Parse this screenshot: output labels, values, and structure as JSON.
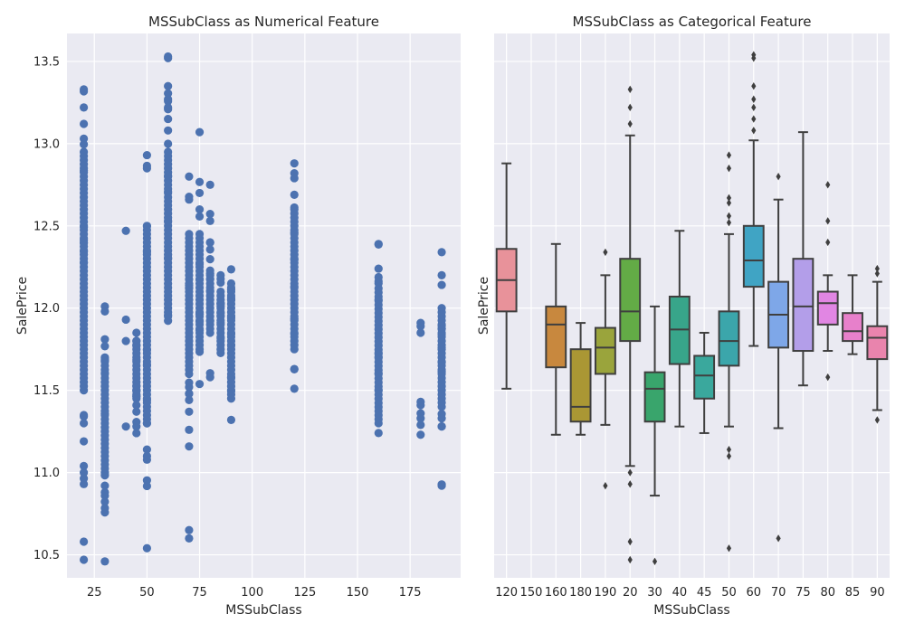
{
  "chart_data": [
    {
      "type": "scatter",
      "title": "MSSubClass as Numerical Feature",
      "xlabel": "MSSubClass",
      "ylabel": "SalePrice",
      "xlim": [
        12,
        199
      ],
      "ylim": [
        10.36,
        13.67
      ],
      "x_ticks": [
        25,
        50,
        75,
        100,
        125,
        150,
        175
      ],
      "y_ticks": [
        10.5,
        11.0,
        11.5,
        12.0,
        12.5,
        13.0,
        13.5
      ],
      "grid": true,
      "marker_color": "#4c72b0",
      "groups": [
        {
          "x": 20,
          "min": 10.47,
          "max": 13.33,
          "dense_range": [
            11.5,
            12.95
          ],
          "outliers": [
            10.47,
            10.58,
            10.93,
            11.0,
            11.04,
            11.19,
            11.3,
            11.35,
            13.03,
            13.12,
            13.22,
            13.33
          ]
        },
        {
          "x": 30,
          "min": 10.46,
          "max": 12.01,
          "dense_range": [
            11.0,
            11.7
          ],
          "outliers": [
            10.46,
            10.86,
            10.88,
            10.92,
            11.98,
            12.01
          ]
        },
        {
          "x": 40,
          "min": 11.28,
          "max": 12.47,
          "dense_range": null,
          "outliers": [
            11.28,
            11.8,
            11.93,
            12.47
          ]
        },
        {
          "x": 45,
          "min": 11.24,
          "max": 11.85,
          "dense_range": [
            11.45,
            11.8
          ],
          "outliers": [
            11.24,
            11.28,
            11.37,
            11.85
          ]
        },
        {
          "x": 50,
          "min": 10.54,
          "max": 12.93,
          "dense_range": [
            11.3,
            12.5
          ],
          "outliers": [
            10.54,
            11.1,
            11.14,
            12.85,
            12.93
          ]
        },
        {
          "x": 60,
          "min": 11.76,
          "max": 13.53,
          "dense_range": [
            11.95,
            12.95
          ],
          "outliers": [
            13.08,
            13.15,
            13.22,
            13.27,
            13.35,
            13.52,
            13.53
          ]
        },
        {
          "x": 70,
          "min": 10.6,
          "max": 12.8,
          "dense_range": [
            11.6,
            12.45
          ],
          "outliers": [
            10.6,
            11.26,
            11.37,
            12.66,
            12.8
          ]
        },
        {
          "x": 75,
          "min": 11.53,
          "max": 13.07,
          "dense_range": [
            11.75,
            12.45
          ],
          "outliers": [
            12.6,
            12.7,
            13.07
          ]
        },
        {
          "x": 80,
          "min": 11.58,
          "max": 12.75,
          "dense_range": [
            11.85,
            12.2
          ],
          "outliers": [
            11.58,
            12.4,
            12.53,
            12.75
          ]
        },
        {
          "x": 85,
          "min": 11.72,
          "max": 12.2,
          "dense_range": [
            11.75,
            12.1
          ],
          "outliers": [
            12.2
          ]
        },
        {
          "x": 90,
          "min": 11.32,
          "max": 12.24,
          "dense_range": [
            11.45,
            12.15
          ],
          "outliers": [
            11.32
          ]
        },
        {
          "x": 120,
          "min": 11.51,
          "max": 12.88,
          "dense_range": [
            11.75,
            12.6
          ],
          "outliers": [
            11.51,
            12.82,
            12.88
          ]
        },
        {
          "x": 160,
          "min": 11.23,
          "max": 12.39,
          "dense_range": [
            11.3,
            12.12
          ],
          "outliers": [
            12.24,
            12.39
          ]
        },
        {
          "x": 180,
          "min": 11.23,
          "max": 11.91,
          "dense_range": null,
          "outliers": [
            11.23,
            11.29,
            11.33,
            11.36,
            11.41,
            11.43,
            11.85,
            11.89,
            11.91
          ]
        },
        {
          "x": 190,
          "min": 10.92,
          "max": 12.34,
          "dense_range": [
            11.4,
            12.0
          ],
          "outliers": [
            10.92,
            11.28,
            11.33,
            12.2,
            12.34
          ]
        }
      ]
    },
    {
      "type": "box",
      "title": "MSSubClass as Categorical Feature",
      "xlabel": "MSSubClass",
      "ylabel": "SalePrice",
      "ylim": [
        10.36,
        13.67
      ],
      "grid": true,
      "categories": [
        "120",
        "150",
        "160",
        "180",
        "190",
        "20",
        "30",
        "40",
        "45",
        "50",
        "60",
        "70",
        "75",
        "80",
        "85",
        "90"
      ],
      "boxes": [
        {
          "category": "120",
          "color": "#e8929a",
          "whisker_low": 11.51,
          "q1": 11.98,
          "median": 12.17,
          "q3": 12.36,
          "whisker_high": 12.88,
          "fliers": []
        },
        {
          "category": "150",
          "color": null,
          "whisker_low": null,
          "q1": null,
          "median": null,
          "q3": null,
          "whisker_high": null,
          "fliers": []
        },
        {
          "category": "160",
          "color": "#c8883e",
          "whisker_low": 11.23,
          "q1": 11.64,
          "median": 11.9,
          "q3": 12.01,
          "whisker_high": 12.39,
          "fliers": []
        },
        {
          "category": "180",
          "color": "#aa9734",
          "whisker_low": 11.23,
          "q1": 11.31,
          "median": 11.4,
          "q3": 11.75,
          "whisker_high": 11.91,
          "fliers": []
        },
        {
          "category": "190",
          "color": "#9aa43c",
          "whisker_low": 11.29,
          "q1": 11.6,
          "median": 11.76,
          "q3": 11.88,
          "whisker_high": 12.2,
          "fliers": [
            10.92,
            12.34
          ]
        },
        {
          "category": "20",
          "color": "#63ab46",
          "whisker_low": 11.04,
          "q1": 11.8,
          "median": 11.98,
          "q3": 12.3,
          "whisker_high": 13.05,
          "fliers": [
            10.47,
            10.58,
            10.93,
            11.0,
            13.12,
            13.22,
            13.33
          ]
        },
        {
          "category": "30",
          "color": "#39a56c",
          "whisker_low": 10.86,
          "q1": 11.31,
          "median": 11.51,
          "q3": 11.61,
          "whisker_high": 12.01,
          "fliers": [
            10.46
          ]
        },
        {
          "category": "40",
          "color": "#38a58a",
          "whisker_low": 11.28,
          "q1": 11.66,
          "median": 11.87,
          "q3": 12.07,
          "whisker_high": 12.47,
          "fliers": []
        },
        {
          "category": "45",
          "color": "#3aa89d",
          "whisker_low": 11.24,
          "q1": 11.45,
          "median": 11.59,
          "q3": 11.71,
          "whisker_high": 11.85,
          "fliers": []
        },
        {
          "category": "50",
          "color": "#3ba6ab",
          "whisker_low": 11.28,
          "q1": 11.65,
          "median": 11.8,
          "q3": 11.98,
          "whisker_high": 12.45,
          "fliers": [
            10.54,
            11.1,
            11.14,
            12.52,
            12.56,
            12.64,
            12.67,
            12.85,
            12.93
          ]
        },
        {
          "category": "60",
          "color": "#40a4c4",
          "whisker_low": 11.77,
          "q1": 12.13,
          "median": 12.29,
          "q3": 12.5,
          "whisker_high": 13.02,
          "fliers": [
            13.08,
            13.15,
            13.22,
            13.27,
            13.35,
            13.52,
            13.54
          ]
        },
        {
          "category": "70",
          "color": "#7ea7e8",
          "whisker_low": 11.27,
          "q1": 11.76,
          "median": 11.96,
          "q3": 12.16,
          "whisker_high": 12.66,
          "fliers": [
            10.6,
            12.8
          ]
        },
        {
          "category": "75",
          "color": "#b39ee9",
          "whisker_low": 11.53,
          "q1": 11.74,
          "median": 12.01,
          "q3": 12.3,
          "whisker_high": 13.07,
          "fliers": []
        },
        {
          "category": "80",
          "color": "#e186e3",
          "whisker_low": 11.74,
          "q1": 11.9,
          "median": 12.03,
          "q3": 12.1,
          "whisker_high": 12.2,
          "fliers": [
            11.58,
            12.4,
            12.53,
            12.75
          ]
        },
        {
          "category": "85",
          "color": "#e780cb",
          "whisker_low": 11.72,
          "q1": 11.8,
          "median": 11.86,
          "q3": 11.97,
          "whisker_high": 12.2,
          "fliers": []
        },
        {
          "category": "90",
          "color": "#e984ad",
          "whisker_low": 11.38,
          "q1": 11.69,
          "median": 11.82,
          "q3": 11.89,
          "whisker_high": 12.16,
          "fliers": [
            11.32,
            12.21,
            12.24
          ]
        }
      ]
    }
  ]
}
